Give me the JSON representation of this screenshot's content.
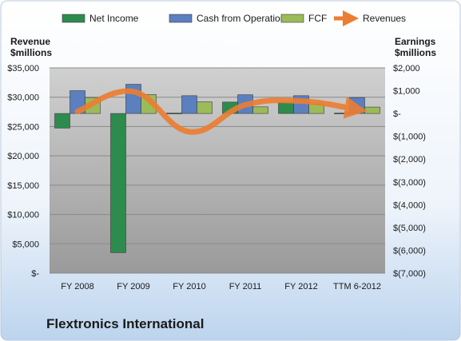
{
  "company_name": "Flextronics International",
  "colors": {
    "net_income": "#2E8B4E",
    "cash_from_operations": "#5B7FBF",
    "fcf": "#9BBB59",
    "revenues": "#ED7D31"
  },
  "chart_data": {
    "type": "bar",
    "categories": [
      "FY 2008",
      "FY 2009",
      "FY 2010",
      "FY 2011",
      "FY 2012",
      "TTM 6-2012"
    ],
    "legend_position": "top",
    "grid": true,
    "y_left": {
      "label_line1": "Revenue",
      "label_line2": "$millions",
      "range": [
        0,
        35000
      ],
      "ticks": [
        "$-",
        "$5,000",
        "$10,000",
        "$15,000",
        "$20,000",
        "$25,000",
        "$30,000",
        "$35,000"
      ]
    },
    "y_right": {
      "label_line1": "Earnings",
      "label_line2": "$millions",
      "range": [
        -7000,
        2000
      ],
      "ticks": [
        "$(7,000)",
        "$(6,000)",
        "$(5,000)",
        "$(4,000)",
        "$(3,000)",
        "$(2,000)",
        "$(1,000)",
        "$-",
        "$1,000",
        "$2,000"
      ]
    },
    "series": [
      {
        "name": "Net Income",
        "axis": "right",
        "kind": "bar",
        "values": [
          -640,
          -6100,
          0,
          500,
          490,
          3
        ]
      },
      {
        "name": "Cash from Operations",
        "axis": "right",
        "kind": "bar",
        "values": [
          1000,
          1280,
          780,
          820,
          780,
          700
        ]
      },
      {
        "name": "FCF",
        "axis": "right",
        "kind": "bar",
        "values": [
          700,
          830,
          510,
          290,
          420,
          280
        ]
      },
      {
        "name": "Revenues",
        "axis": "left",
        "kind": "line",
        "values": [
          27560,
          30950,
          24110,
          28680,
          29340,
          27900
        ]
      }
    ]
  }
}
